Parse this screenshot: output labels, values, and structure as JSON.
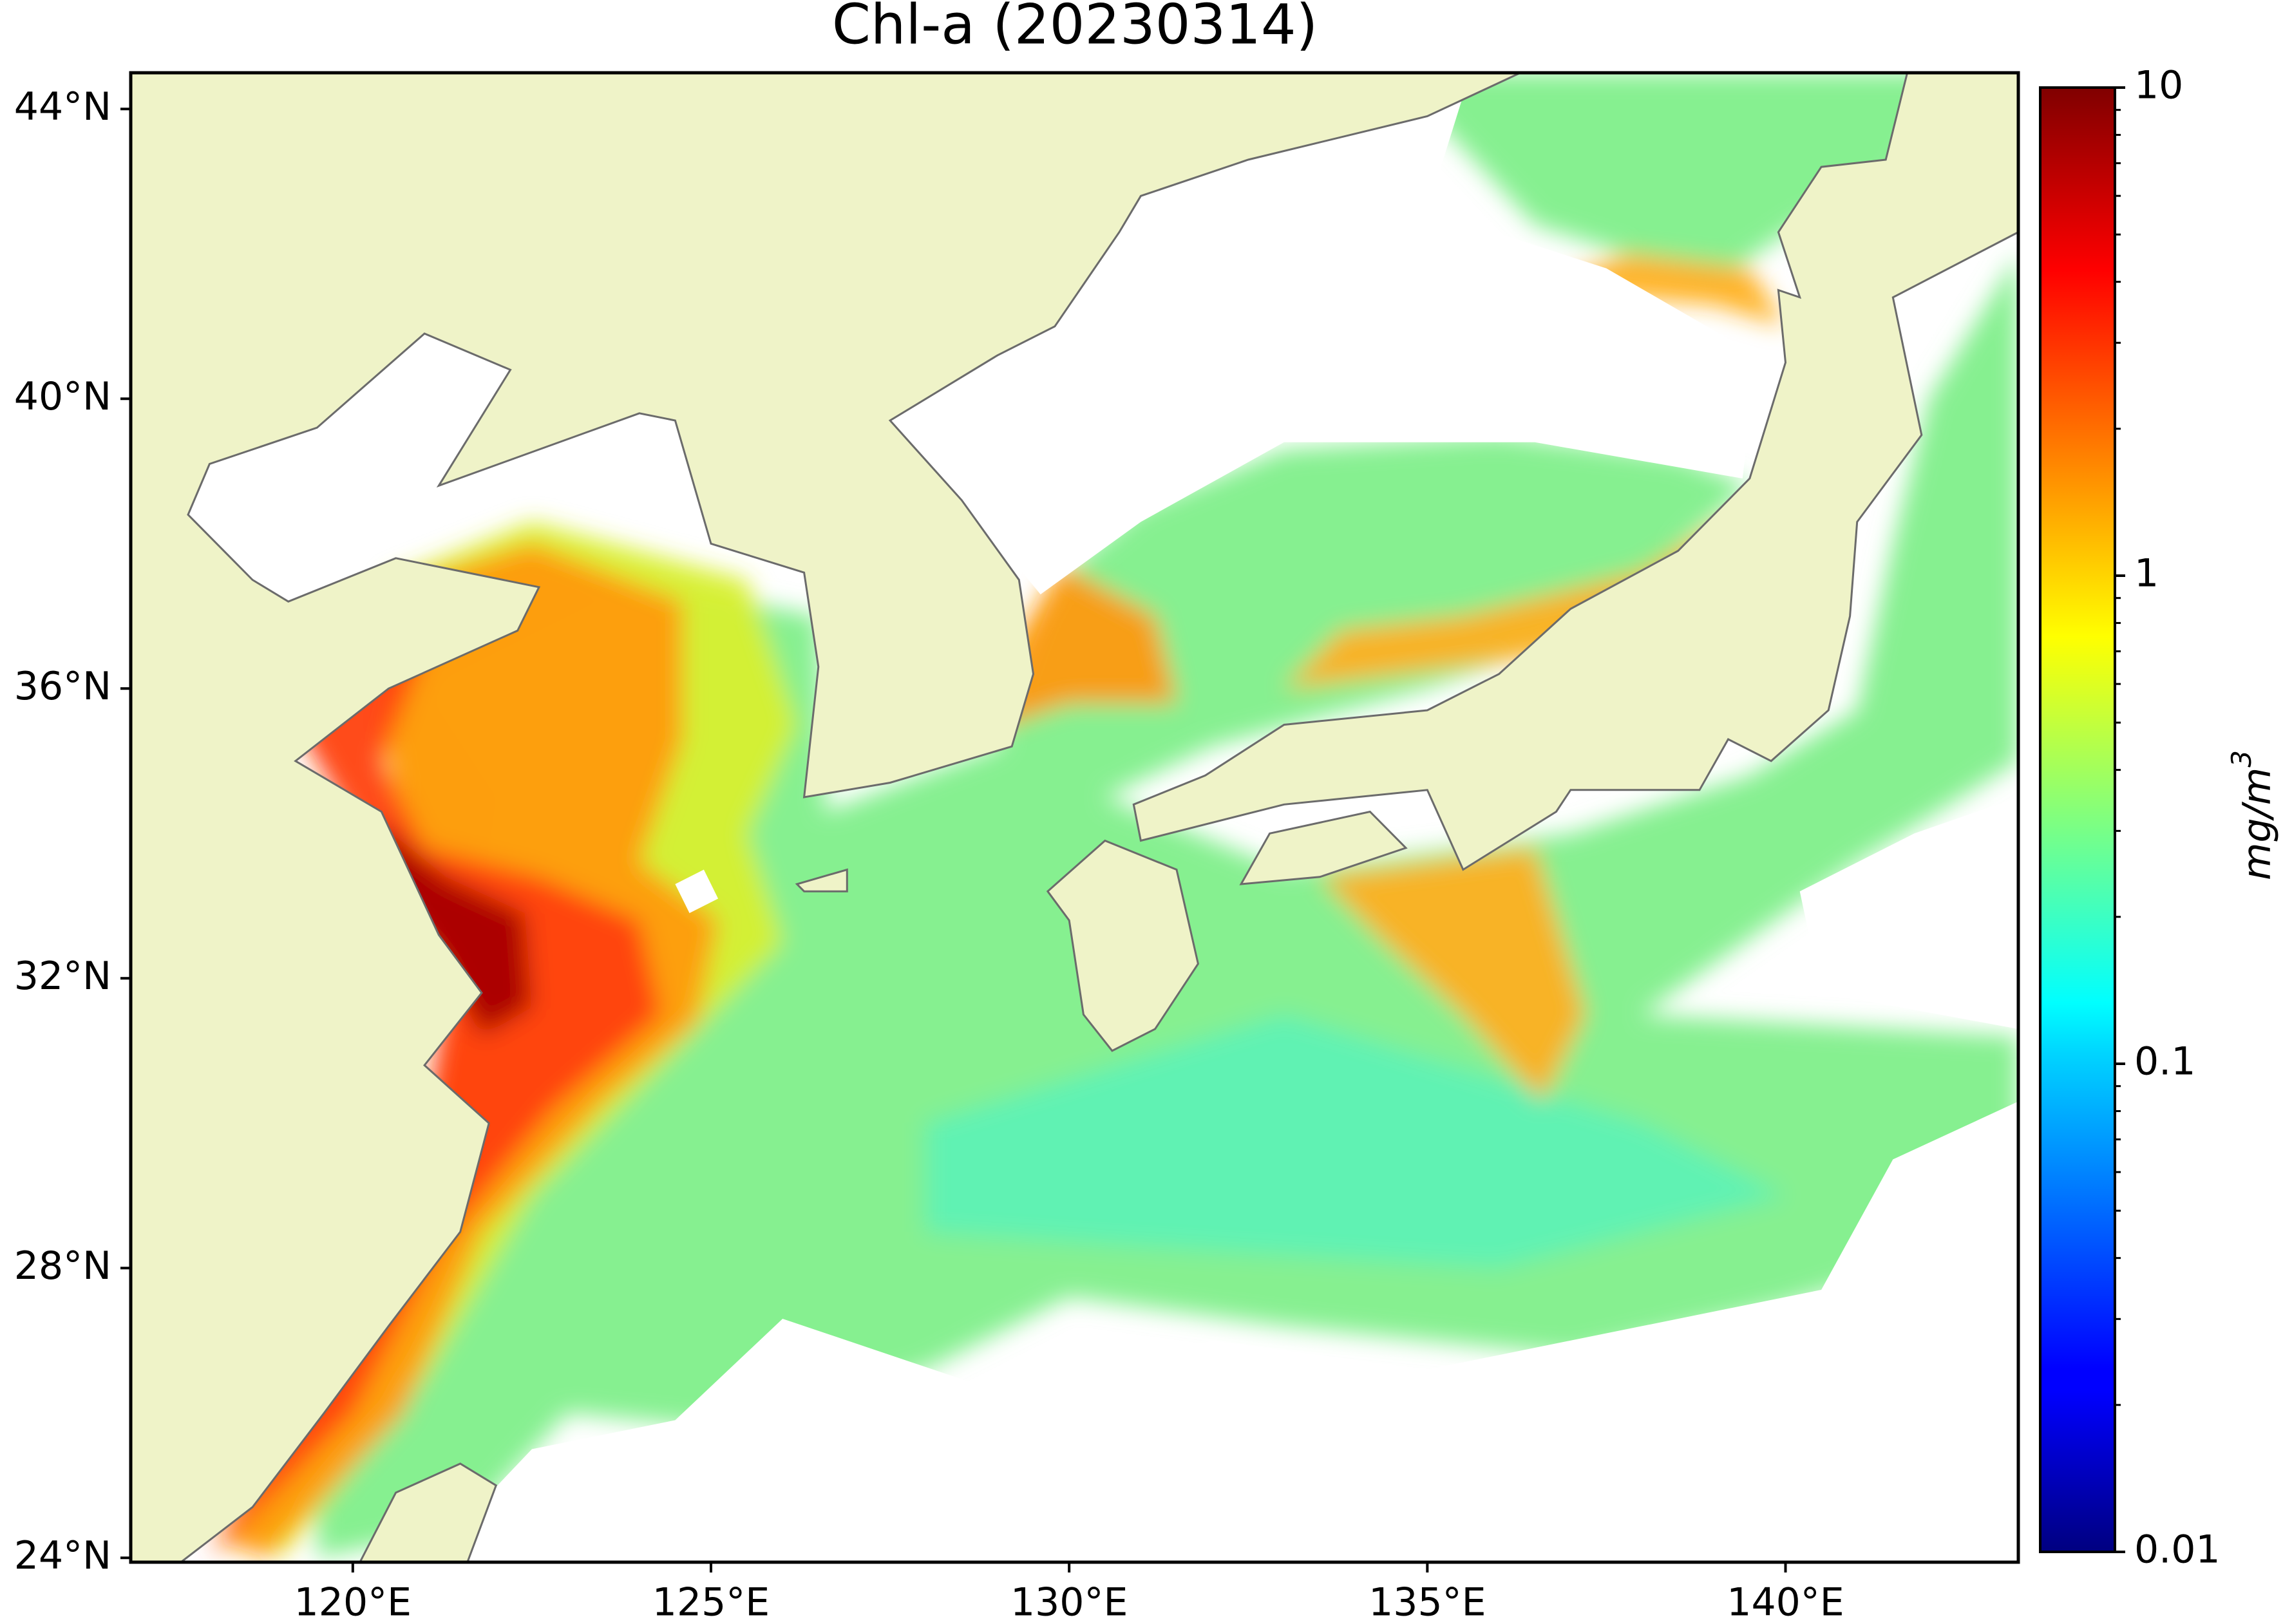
{
  "title": "Chl-a (20230314)",
  "map": {
    "type": "map",
    "lonlim": [
      116.9,
      143.25
    ],
    "latlim": [
      23.94,
      44.5
    ],
    "lon_ticks": [
      {
        "value": 120,
        "label": "120°E"
      },
      {
        "value": 125,
        "label": "125°E"
      },
      {
        "value": 130,
        "label": "130°E"
      },
      {
        "value": 135,
        "label": "135°E"
      },
      {
        "value": 140,
        "label": "140°E"
      }
    ],
    "lat_ticks": [
      {
        "value": 24,
        "label": "24°N"
      },
      {
        "value": 28,
        "label": "28°N"
      },
      {
        "value": 32,
        "label": "32°N"
      },
      {
        "value": 36,
        "label": "36°N"
      },
      {
        "value": 40,
        "label": "40°N"
      },
      {
        "value": 44,
        "label": "44°N"
      }
    ],
    "land_color": "#eff3c8",
    "ocean_color": "#ffffff"
  },
  "colorbar": {
    "scale": "log",
    "lim": [
      0.01,
      10
    ],
    "ticks": [
      0.01,
      0.1,
      1,
      10
    ],
    "minor_ticks": [
      0.02,
      0.03,
      0.04,
      0.05,
      0.06,
      0.07,
      0.08,
      0.09,
      0.2,
      0.3,
      0.4,
      0.5,
      0.6,
      0.7,
      0.8,
      0.9,
      2,
      3,
      4,
      5,
      6,
      7,
      8,
      9
    ],
    "colormap": "jet",
    "label": "mg/m",
    "label_superscript": "3"
  }
}
